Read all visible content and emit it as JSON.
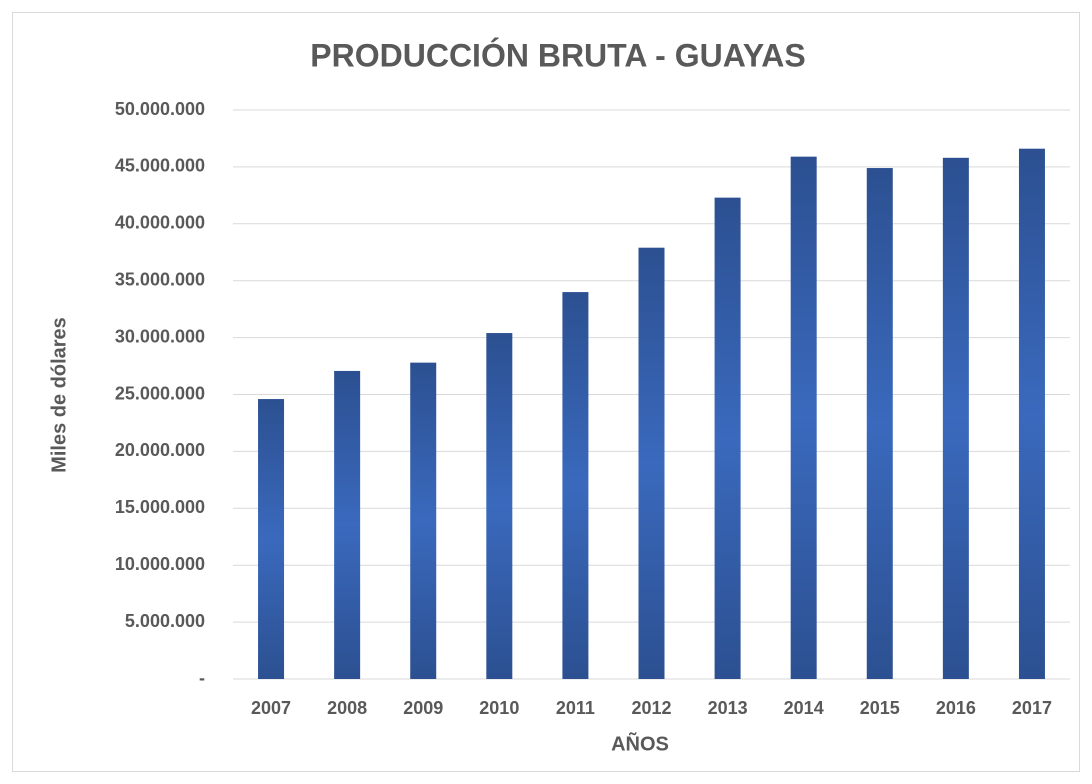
{
  "chart_data": {
    "type": "bar",
    "title": "PRODUCCIÓN BRUTA - GUAYAS",
    "x_label": "AÑOS",
    "y_label": "Miles de dólares",
    "categories": [
      "2007",
      "2008",
      "2009",
      "2010",
      "2011",
      "2012",
      "2013",
      "2014",
      "2015",
      "2016",
      "2017"
    ],
    "values": [
      24600000,
      27070000,
      27800000,
      30400000,
      34000000,
      37900000,
      42300000,
      45900000,
      44900000,
      45800000,
      46600000
    ],
    "color": "#2c5091",
    "ylim": [
      0,
      50000000
    ],
    "yticks": [
      {
        "value": 0,
        "label": "-"
      },
      {
        "value": 5000000,
        "label": "5.000.000"
      },
      {
        "value": 10000000,
        "label": "10.000.000"
      },
      {
        "value": 15000000,
        "label": "15.000.000"
      },
      {
        "value": 20000000,
        "label": "20.000.000"
      },
      {
        "value": 25000000,
        "label": "25.000.000"
      },
      {
        "value": 30000000,
        "label": "30.000.000"
      },
      {
        "value": 35000000,
        "label": "35.000.000"
      },
      {
        "value": 40000000,
        "label": "40.000.000"
      },
      {
        "value": 45000000,
        "label": "45.000.000"
      },
      {
        "value": 50000000,
        "label": "50.000.000"
      }
    ],
    "grid": true
  }
}
